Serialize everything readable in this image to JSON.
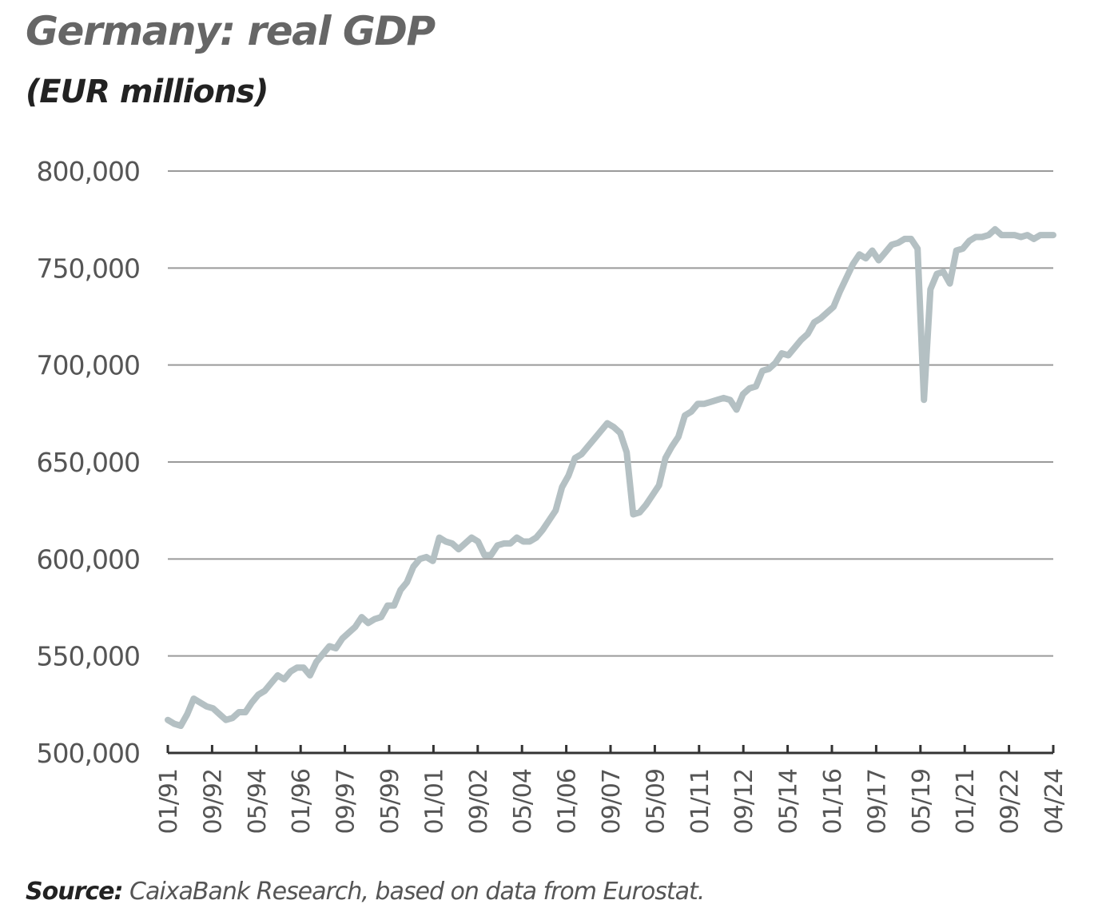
{
  "header": {
    "title": "Germany: real GDP",
    "subtitle": "(EUR millions)"
  },
  "footer": {
    "source_label": "Source:",
    "source_text": "CaixaBank Research, based on data from Eurostat."
  },
  "colors": {
    "line": "#b4c0c3",
    "grid": "#9a9a9a",
    "axis": "#333333",
    "tick_text": "#555555"
  },
  "chart_data": {
    "type": "line",
    "title": "Germany: real GDP",
    "subtitle": "(EUR millions)",
    "xlabel": "",
    "ylabel": "",
    "ylim": [
      500000,
      800000
    ],
    "grid": true,
    "y_ticks": [
      "500,000",
      "550,000",
      "600,000",
      "650,000",
      "700,000",
      "750,000",
      "800,000"
    ],
    "x_tick_labels": [
      "01/91",
      "09/92",
      "05/94",
      "01/96",
      "09/97",
      "05/99",
      "01/01",
      "09/02",
      "05/04",
      "01/06",
      "09/07",
      "05/09",
      "01/11",
      "09/12",
      "05/14",
      "01/16",
      "09/17",
      "05/19",
      "01/21",
      "09/22",
      "04/24"
    ],
    "series": [
      {
        "values": [
          517000,
          515000,
          514000,
          520000,
          528000,
          526000,
          524000,
          523000,
          520000,
          517000,
          518000,
          521000,
          521000,
          526000,
          530000,
          532000,
          536000,
          540000,
          538000,
          542000,
          544000,
          544000,
          540000,
          547000,
          551000,
          555000,
          554000,
          559000,
          562000,
          565000,
          570000,
          567000,
          569000,
          570000,
          576000,
          576000,
          584000,
          588000,
          596000,
          600000,
          601000,
          599000,
          611000,
          609000,
          608000,
          605000,
          608000,
          611000,
          609000,
          602000,
          602000,
          607000,
          608000,
          608000,
          611000,
          609000,
          609000,
          611000,
          615000,
          620000,
          625000,
          637000,
          643000,
          652000,
          654000,
          658000,
          662000,
          666000,
          670000,
          668000,
          665000,
          655000,
          623000,
          624000,
          628000,
          633000,
          638000,
          652000,
          658000,
          663000,
          674000,
          676000,
          680000,
          680000,
          681000,
          682000,
          683000,
          682000,
          677000,
          685000,
          688000,
          689000,
          697000,
          698000,
          701000,
          706000,
          705000,
          709000,
          713000,
          716000,
          722000,
          724000,
          727000,
          730000,
          738000,
          745000,
          752000,
          757000,
          755000,
          759000,
          754000,
          758000,
          762000,
          763000,
          765000,
          765000,
          760000,
          682000,
          739000,
          747000,
          748000,
          742000,
          759000,
          760000,
          764000,
          766000,
          766000,
          767000,
          770000,
          767000,
          767000,
          767000,
          766000,
          767000,
          765000,
          767000,
          767000,
          767000
        ]
      }
    ]
  }
}
